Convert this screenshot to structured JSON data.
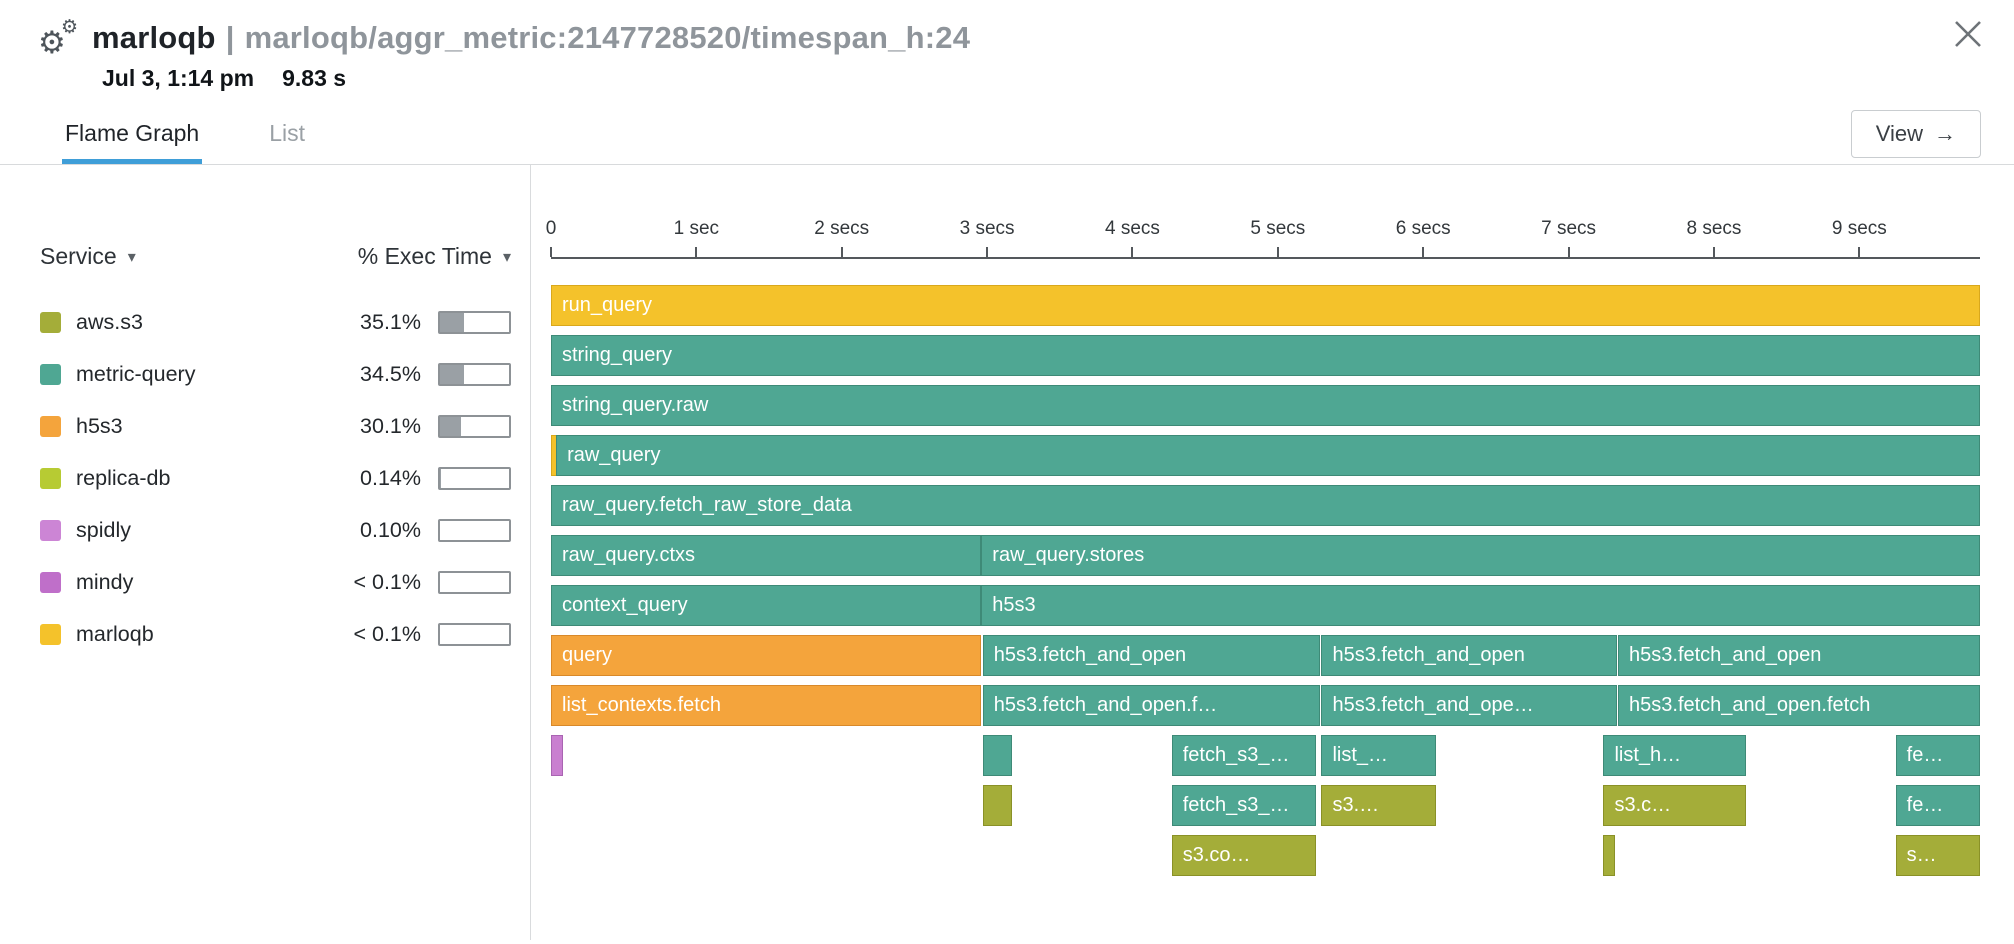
{
  "header": {
    "title_primary": "marloqb",
    "title_separator": "|",
    "title_secondary": "marloqb/aggr_metric:2147728520/timespan_h:24",
    "timestamp": "Jul 3, 1:14 pm",
    "duration": "9.83 s"
  },
  "icons": {
    "gear": "⚙",
    "caret_down": "▾",
    "view_arrow": "→"
  },
  "tabs": [
    {
      "label": "Flame Graph",
      "active": true
    },
    {
      "label": "List",
      "active": false
    }
  ],
  "view_button": {
    "label": "View"
  },
  "services_panel": {
    "col_service": "Service",
    "col_exec": "% Exec Time",
    "rows": [
      {
        "name": "aws.s3",
        "pct": "35.1%",
        "value": 35.1,
        "color": "#A4AD39"
      },
      {
        "name": "metric-query",
        "pct": "34.5%",
        "value": 34.5,
        "color": "#4FA793"
      },
      {
        "name": "h5s3",
        "pct": "30.1%",
        "value": 30.1,
        "color": "#F4A43C"
      },
      {
        "name": "replica-db",
        "pct": "0.14%",
        "value": 0.14,
        "color": "#B7CB33"
      },
      {
        "name": "spidly",
        "pct": "0.10%",
        "value": 0.1,
        "color": "#CC85D5"
      },
      {
        "name": "mindy",
        "pct": "< 0.1%",
        "value": 0.05,
        "color": "#BF6FC9"
      },
      {
        "name": "marloqb",
        "pct": "< 0.1%",
        "value": 0.05,
        "color": "#F4C22B"
      }
    ]
  },
  "chart_data": {
    "type": "flamegraph",
    "title": "marloqb trace flame graph",
    "total_duration_s": 9.83,
    "axis_ticks": [
      "0",
      "1 sec",
      "2 secs",
      "3 secs",
      "4 secs",
      "5 secs",
      "6 secs",
      "7 secs",
      "8 secs",
      "9 secs"
    ],
    "colors": {
      "teal": "#4FA793",
      "orange": "#F4A43C",
      "yellow": "#F4C22B",
      "olive": "#A4AD39",
      "purple": "#C97FD0"
    },
    "border_colors": {
      "teal": "#3E8A77",
      "orange": "#D8892A",
      "yellow": "#D9A81C",
      "olive": "#8A9127",
      "purple": "#A964B2"
    },
    "rows": [
      [
        {
          "label": "run_query",
          "color": "yellow",
          "start": 0,
          "end": 9.83
        }
      ],
      [
        {
          "label": "string_query",
          "color": "teal",
          "start": 0,
          "end": 9.83
        }
      ],
      [
        {
          "label": "string_query.raw",
          "color": "teal",
          "start": 0,
          "end": 9.83
        }
      ],
      [
        {
          "label": "",
          "color": "yellow",
          "start": 0,
          "end": 0.035
        },
        {
          "label": "raw_query",
          "color": "teal",
          "start": 0.035,
          "end": 9.83
        }
      ],
      [
        {
          "label": "raw_query.fetch_raw_store_data",
          "color": "teal",
          "start": 0,
          "end": 9.83
        }
      ],
      [
        {
          "label": "raw_query.ctxs",
          "color": "teal",
          "start": 0,
          "end": 2.96
        },
        {
          "label": "raw_query.stores",
          "color": "teal",
          "start": 2.96,
          "end": 9.83
        }
      ],
      [
        {
          "label": "context_query",
          "color": "teal",
          "start": 0,
          "end": 2.96
        },
        {
          "label": "h5s3",
          "color": "teal",
          "start": 2.96,
          "end": 9.83
        }
      ],
      [
        {
          "label": "query",
          "color": "orange",
          "start": 0,
          "end": 2.96
        },
        {
          "label": "h5s3.fetch_and_open",
          "color": "teal",
          "start": 2.97,
          "end": 5.29
        },
        {
          "label": "h5s3.fetch_and_open",
          "color": "teal",
          "start": 5.3,
          "end": 7.33
        },
        {
          "label": "h5s3.fetch_and_open",
          "color": "teal",
          "start": 7.34,
          "end": 9.83
        }
      ],
      [
        {
          "label": "list_contexts.fetch",
          "color": "orange",
          "start": 0,
          "end": 2.96
        },
        {
          "label": "h5s3.fetch_and_open.f…",
          "color": "teal",
          "start": 2.97,
          "end": 5.29
        },
        {
          "label": "h5s3.fetch_and_ope…",
          "color": "teal",
          "start": 5.3,
          "end": 7.33
        },
        {
          "label": "h5s3.fetch_and_open.fetch",
          "color": "teal",
          "start": 7.34,
          "end": 9.83
        }
      ],
      [
        {
          "label": "",
          "color": "purple",
          "start": 0,
          "end": 0.03
        },
        {
          "label": "",
          "color": "teal",
          "start": 2.97,
          "end": 3.17
        },
        {
          "label": "fetch_s3_…",
          "color": "teal",
          "start": 4.27,
          "end": 5.26
        },
        {
          "label": "list_…",
          "color": "teal",
          "start": 5.3,
          "end": 6.09
        },
        {
          "label": "list_h…",
          "color": "teal",
          "start": 7.24,
          "end": 8.22
        },
        {
          "label": "fe…",
          "color": "teal",
          "start": 9.25,
          "end": 9.83
        }
      ],
      [
        {
          "label": "",
          "color": "olive",
          "start": 2.97,
          "end": 3.17
        },
        {
          "label": "fetch_s3_…",
          "color": "teal",
          "start": 4.27,
          "end": 5.26
        },
        {
          "label": "s3.…",
          "color": "olive",
          "start": 5.3,
          "end": 6.09
        },
        {
          "label": "s3.c…",
          "color": "olive",
          "start": 7.24,
          "end": 8.22
        },
        {
          "label": "fe…",
          "color": "teal",
          "start": 9.25,
          "end": 9.83
        }
      ],
      [
        {
          "label": "s3.co…",
          "color": "olive",
          "start": 4.27,
          "end": 5.26
        },
        {
          "label": "",
          "color": "olive",
          "start": 7.24,
          "end": 7.28
        },
        {
          "label": "s…",
          "color": "olive",
          "start": 9.25,
          "end": 9.83
        }
      ]
    ]
  }
}
